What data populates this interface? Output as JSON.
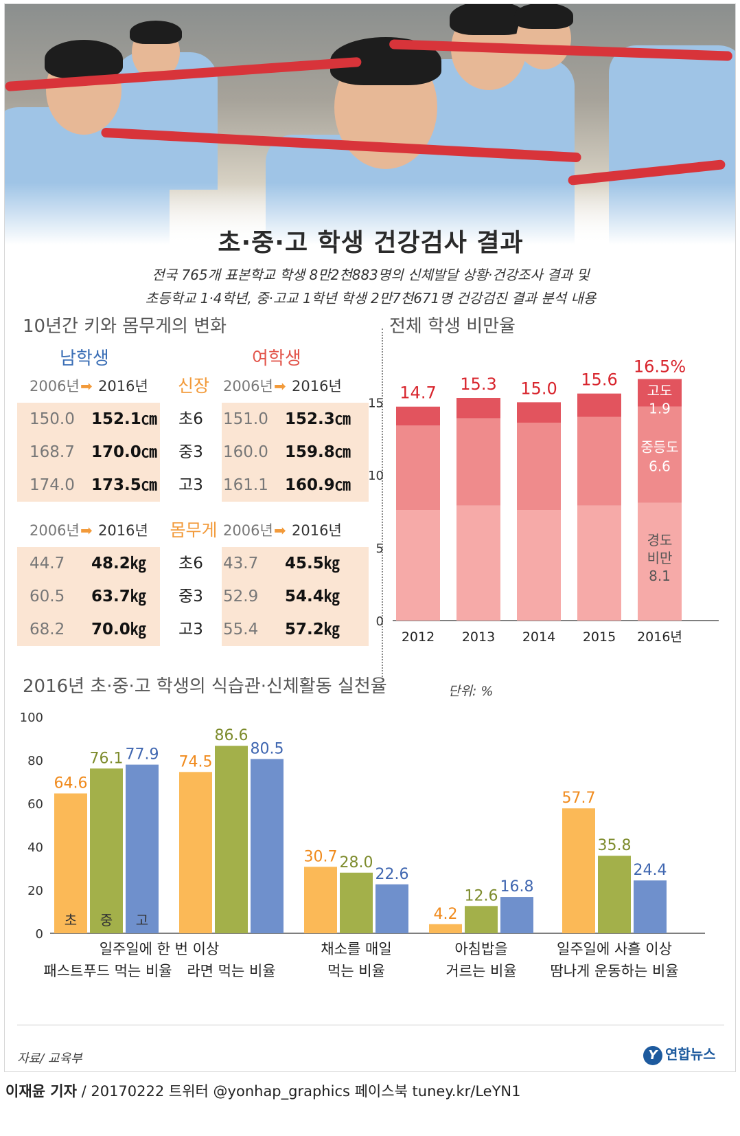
{
  "header": {
    "title": "초·중·고 학생 건강검사 결과",
    "subtitle_line1": "전국 765개 표본학교 학생 8만2천883명의 신체발달 상황·건강조사 결과 및",
    "subtitle_line2": "초등학교 1·4학년, 중·고교 1학년 학생 2만7천671명 건강검진 결과 분석 내용"
  },
  "body_section": {
    "title": "10년간 키와 몸무게의 변화",
    "male_label": "남학생",
    "female_label": "여학생",
    "colors": {
      "male": "#3b6fb6",
      "female": "#e2544a",
      "metric": "#f29a3a",
      "band": "#fbe5d3"
    },
    "height": {
      "metric_label": "신장",
      "year_from": "2006년",
      "year_to": "2016년",
      "arrow": "➡",
      "rows": [
        {
          "grade": "초6",
          "male_old": "150.0",
          "male_new": "152.1㎝",
          "female_old": "151.0",
          "female_new": "152.3㎝"
        },
        {
          "grade": "중3",
          "male_old": "168.7",
          "male_new": "170.0㎝",
          "female_old": "160.0",
          "female_new": "159.8㎝"
        },
        {
          "grade": "고3",
          "male_old": "174.0",
          "male_new": "173.5㎝",
          "female_old": "161.1",
          "female_new": "160.9㎝"
        }
      ]
    },
    "weight": {
      "metric_label": "몸무게",
      "year_from": "2006년",
      "year_to": "2016년",
      "arrow": "➡",
      "rows": [
        {
          "grade": "초6",
          "male_old": "44.7",
          "male_new": "48.2㎏",
          "female_old": "43.7",
          "female_new": "45.5㎏"
        },
        {
          "grade": "중3",
          "male_old": "60.5",
          "male_new": "63.7㎏",
          "female_old": "52.9",
          "female_new": "54.4㎏"
        },
        {
          "grade": "고3",
          "male_old": "68.2",
          "male_new": "70.0㎏",
          "female_old": "55.4",
          "female_new": "57.2㎏"
        }
      ]
    }
  },
  "chart_data": [
    {
      "type": "bar",
      "stacked": true,
      "title": "전체 학생 비만율",
      "categories": [
        "2012",
        "2013",
        "2014",
        "2015",
        "2016년"
      ],
      "totals": [
        14.7,
        15.3,
        15.0,
        15.6,
        16.5
      ],
      "total_labels": [
        "14.7",
        "15.3",
        "15.0",
        "15.6",
        "16.5%"
      ],
      "series": [
        {
          "name": "경도 비만",
          "values": [
            7.6,
            7.9,
            7.6,
            7.9,
            8.1
          ],
          "color": "#f6aaa8"
        },
        {
          "name": "중등도",
          "values": [
            5.8,
            6.0,
            6.0,
            6.1,
            6.6
          ],
          "color": "#ef8b8c"
        },
        {
          "name": "고도",
          "values": [
            1.3,
            1.4,
            1.4,
            1.6,
            1.9
          ],
          "color": "#e2545e"
        }
      ],
      "last_bar_labels": [
        {
          "name": "고도",
          "value": "1.9"
        },
        {
          "name": "중등도",
          "value": "6.6"
        },
        {
          "name": "경도",
          "name2": "비만",
          "value": "8.1"
        }
      ],
      "yticks": [
        "0",
        "5",
        "10",
        "15"
      ],
      "ylim": [
        0,
        17
      ],
      "total_color": "#d8252d"
    },
    {
      "type": "bar",
      "title": "2016년 초·중·고 학생의 식습관·신체활동 실천율",
      "unit": "단위: %",
      "legend_in_bars": [
        "초",
        "중",
        "고"
      ],
      "groups": [
        {
          "label1": "일주일에 한 번 이상",
          "label2": "패스트푸드 먹는 비율",
          "values": [
            64.6,
            76.1,
            77.9
          ],
          "labels": [
            "64.6",
            "76.1",
            "77.9"
          ]
        },
        {
          "label1": "",
          "label2": "라면 먹는 비율",
          "values": [
            74.5,
            86.6,
            80.5
          ],
          "labels": [
            "74.5",
            "86.6",
            "80.5"
          ]
        },
        {
          "label1": "채소를 매일",
          "label2": "먹는 비율",
          "values": [
            30.7,
            28.0,
            22.6
          ],
          "labels": [
            "30.7",
            "28.0",
            "22.6"
          ]
        },
        {
          "label1": "아침밥을",
          "label2": "거르는 비율",
          "values": [
            4.2,
            12.6,
            16.8
          ],
          "labels": [
            "4.2",
            "12.6",
            "16.8"
          ]
        },
        {
          "label1": "일주일에 사흘 이상",
          "label2": "땀나게 운동하는 비율",
          "values": [
            57.7,
            35.8,
            24.4
          ],
          "labels": [
            "57.7",
            "35.8",
            "24.4"
          ]
        }
      ],
      "series_colors": [
        "#fbb957",
        "#a3b04a",
        "#6f90cc"
      ],
      "label_colors": [
        "#f08a1c",
        "#7d8b2c",
        "#3f66b0"
      ],
      "yticks": [
        "0",
        "20",
        "40",
        "60",
        "80",
        "100"
      ],
      "ylim": [
        0,
        100
      ]
    }
  ],
  "footer": {
    "source": "자료/ 교육부",
    "logo": "연합뉴스",
    "logo_mark": "Y",
    "reporter": "이재윤 기자",
    "byline_rest": " / 20170222   트위터 @yonhap_graphics  페이스북 tuney.kr/LeYN1"
  }
}
